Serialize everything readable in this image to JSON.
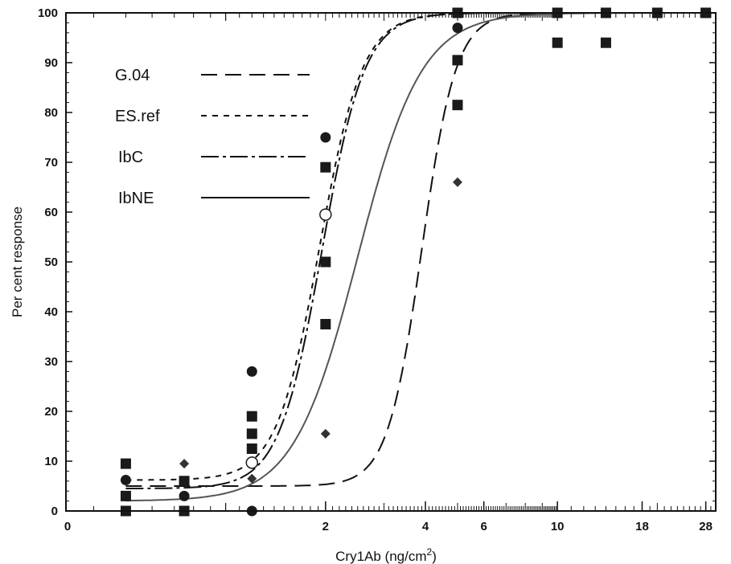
{
  "chart_data": {
    "type": "scatter",
    "xlabel": "Cry1Ab (ng/cm",
    "xlabel_sup": "2",
    "xlabel_suffix": ")",
    "ylabel": "Per cent response",
    "x_scale": "log",
    "xlim": [
      0.33,
      30
    ],
    "ylim": [
      0,
      100
    ],
    "y_ticks": [
      "0",
      "10",
      "20",
      "30",
      "40",
      "50",
      "60",
      "70",
      "80",
      "90",
      "100"
    ],
    "x_ticks": [
      {
        "value": 2,
        "label": "2"
      },
      {
        "value": 4,
        "label": "4"
      },
      {
        "value": 6,
        "label": "6"
      },
      {
        "value": 10,
        "label": "10"
      },
      {
        "value": 18,
        "label": "18"
      },
      {
        "value": 28,
        "label": "28"
      }
    ],
    "x_origin_label": "0",
    "grid": false,
    "legend_position": "top-left",
    "legend": [
      {
        "label": "G.04",
        "dash": "long-dash"
      },
      {
        "label": "ES.ref",
        "dash": "short-dash"
      },
      {
        "label": "IbC",
        "dash": "dash-dot"
      },
      {
        "label": "IbNE",
        "dash": "solid"
      }
    ],
    "curves": [
      {
        "label": "G.04",
        "dash": "long-dash",
        "lower": 5,
        "upper": 100,
        "ec50": 3.9,
        "slope": 8.4
      },
      {
        "label": "ES.ref",
        "dash": "short-dash",
        "lower": 6.2,
        "upper": 100,
        "ec50": 1.92,
        "slope": 6.7
      },
      {
        "label": "IbC",
        "dash": "dash-dot",
        "lower": 4.5,
        "upper": 100,
        "ec50": 1.95,
        "slope": 6.7
      },
      {
        "label": "IbNE",
        "dash": "solid",
        "lower": 2,
        "upper": 100,
        "ec50": 2.5,
        "slope": 4.5
      }
    ],
    "points": [
      {
        "marker": "square",
        "x": 0.5,
        "y": 9.5
      },
      {
        "marker": "square",
        "x": 0.5,
        "y": 3
      },
      {
        "marker": "square",
        "x": 0.5,
        "y": 0
      },
      {
        "marker": "square",
        "x": 0.75,
        "y": 6
      },
      {
        "marker": "square",
        "x": 0.75,
        "y": 0
      },
      {
        "marker": "square",
        "x": 1.2,
        "y": 19
      },
      {
        "marker": "square",
        "x": 1.2,
        "y": 15.5
      },
      {
        "marker": "square",
        "x": 1.2,
        "y": 12.5
      },
      {
        "marker": "square",
        "x": 2,
        "y": 69
      },
      {
        "marker": "square",
        "x": 2,
        "y": 50
      },
      {
        "marker": "square",
        "x": 2,
        "y": 37.5
      },
      {
        "marker": "square",
        "x": 5,
        "y": 100
      },
      {
        "marker": "square",
        "x": 5,
        "y": 90.5
      },
      {
        "marker": "square",
        "x": 5,
        "y": 81.5
      },
      {
        "marker": "square",
        "x": 10,
        "y": 100
      },
      {
        "marker": "square",
        "x": 10,
        "y": 94
      },
      {
        "marker": "square",
        "x": 14,
        "y": 100
      },
      {
        "marker": "square",
        "x": 14,
        "y": 94
      },
      {
        "marker": "square",
        "x": 20,
        "y": 100
      },
      {
        "marker": "square",
        "x": 28,
        "y": 100
      },
      {
        "marker": "circle",
        "x": 0.5,
        "y": 6.2
      },
      {
        "marker": "circle",
        "x": 0.5,
        "y": 0
      },
      {
        "marker": "circle",
        "x": 0.75,
        "y": 3
      },
      {
        "marker": "circle",
        "x": 0.75,
        "y": 0
      },
      {
        "marker": "circle",
        "x": 1.2,
        "y": 28
      },
      {
        "marker": "circle",
        "x": 1.2,
        "y": 0
      },
      {
        "marker": "circle",
        "x": 2,
        "y": 75
      },
      {
        "marker": "circle",
        "x": 5,
        "y": 97
      },
      {
        "marker": "circle",
        "x": 5,
        "y": 100
      },
      {
        "marker": "circle",
        "x": 10,
        "y": 100
      },
      {
        "marker": "circle",
        "x": 14,
        "y": 100
      },
      {
        "marker": "circle",
        "x": 20,
        "y": 100
      },
      {
        "marker": "circle",
        "x": 28,
        "y": 100
      },
      {
        "marker": "open-circle",
        "x": 1.2,
        "y": 9.7
      },
      {
        "marker": "open-circle",
        "x": 2,
        "y": 59.5
      },
      {
        "marker": "diamond",
        "x": 0.75,
        "y": 9.5
      },
      {
        "marker": "diamond",
        "x": 1.2,
        "y": 6.5
      },
      {
        "marker": "diamond",
        "x": 2,
        "y": 15.5
      },
      {
        "marker": "diamond",
        "x": 5,
        "y": 66
      }
    ]
  }
}
